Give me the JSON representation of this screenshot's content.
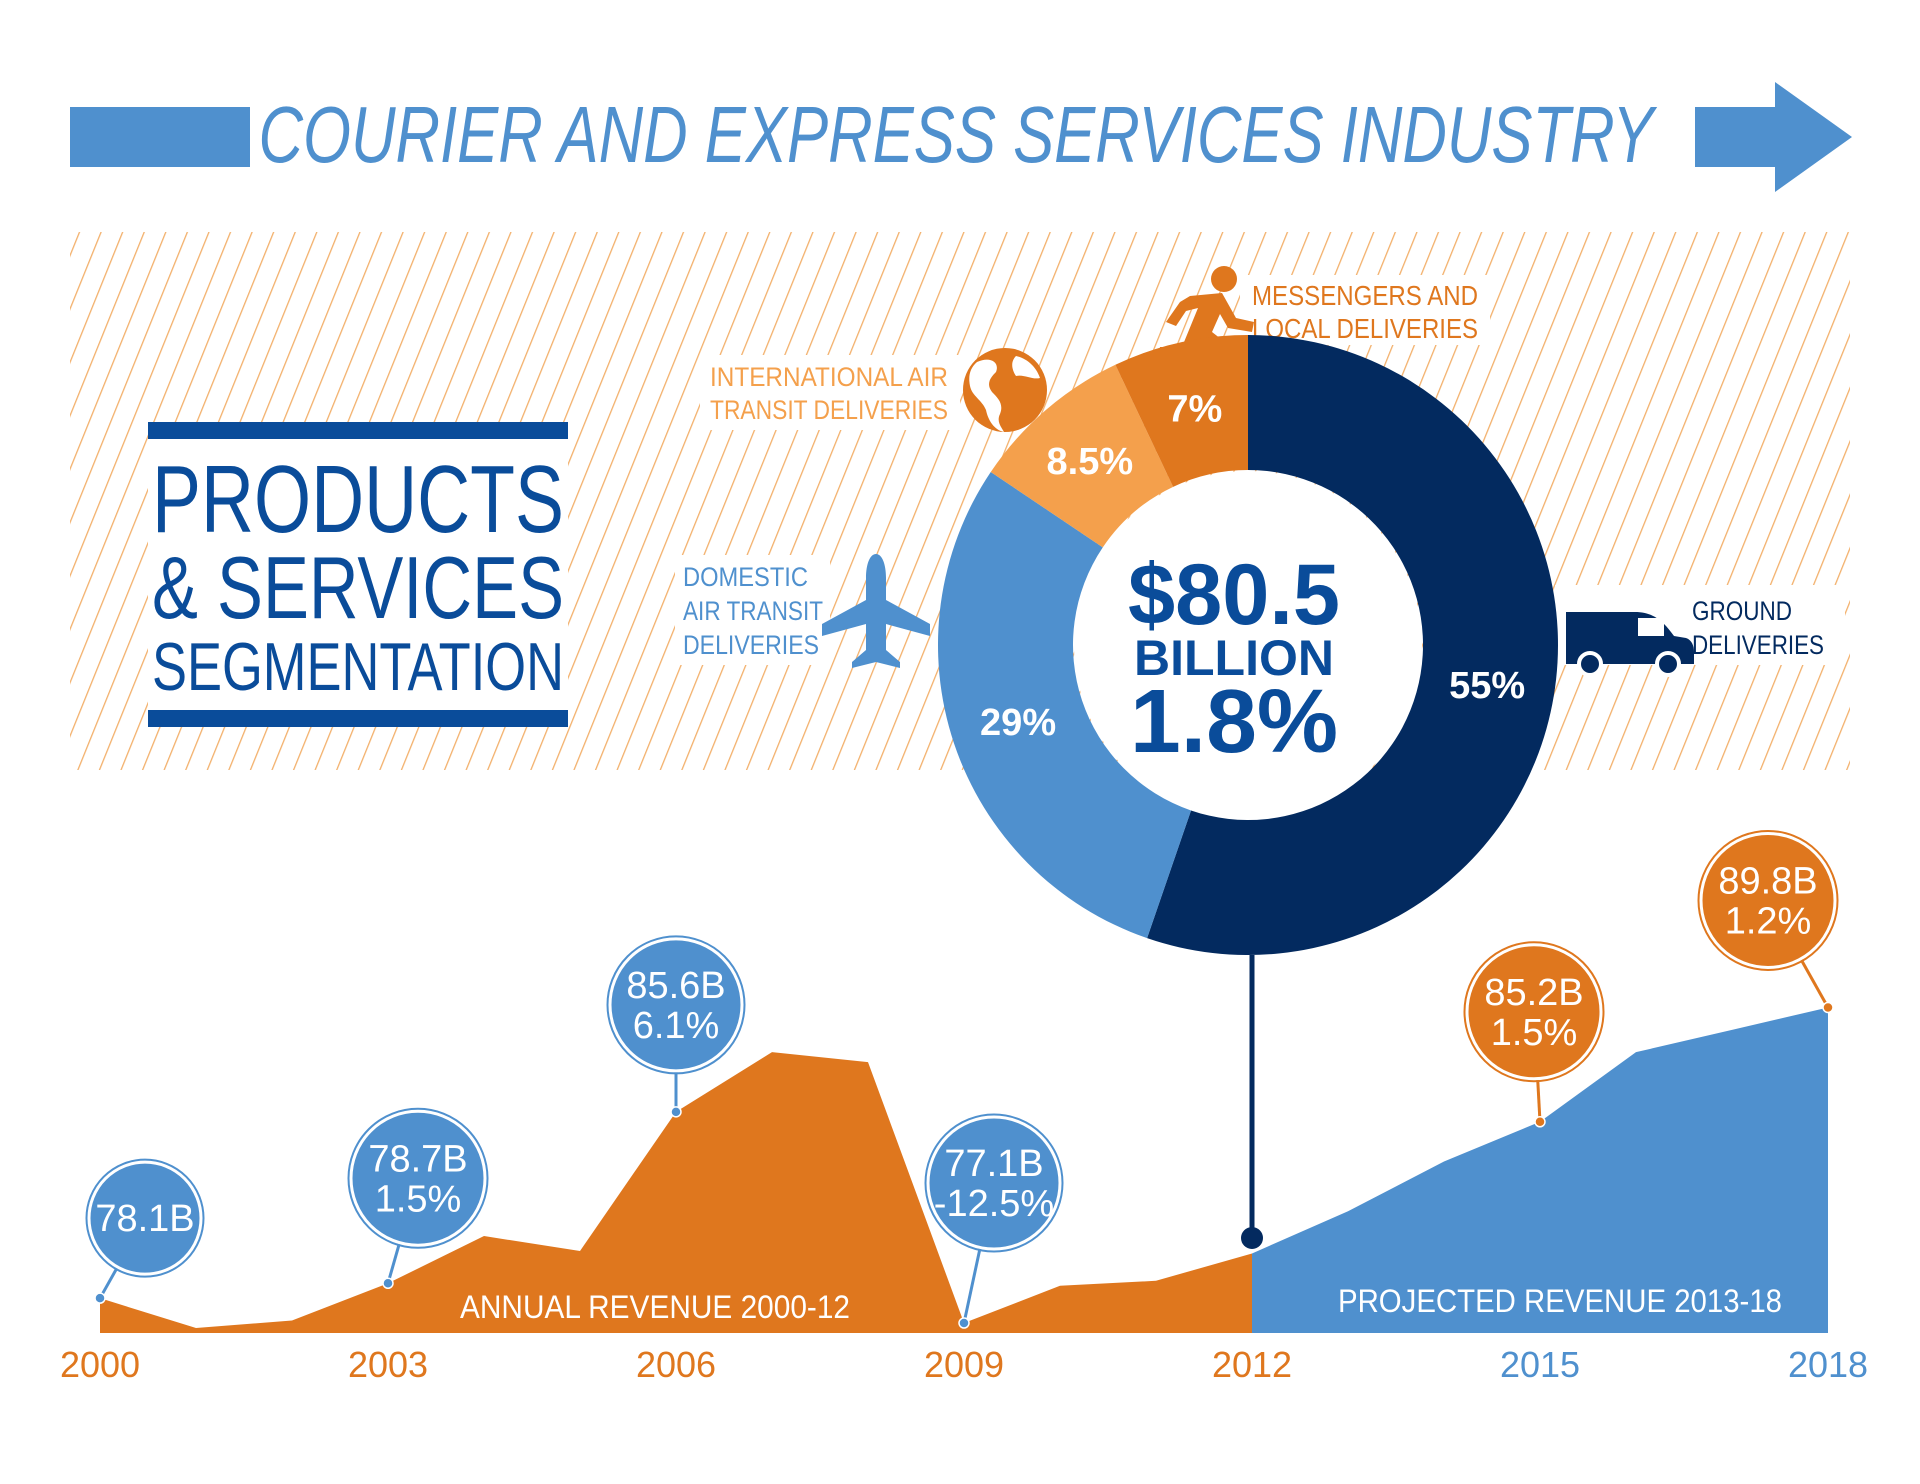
{
  "header": {
    "title": "COURIER AND EXPRESS SERVICES INDUSTRY"
  },
  "segmentation_box": {
    "line1": "PRODUCTS",
    "line2": "& SERVICES",
    "line3": "SEGMENTATION"
  },
  "colors": {
    "light_blue": "#4f90ce",
    "navy": "#032a5f",
    "title_navy": "#0a4c9a",
    "orange": "#df771e",
    "light_orange": "#f4a04c",
    "hatch": "#f3b06b"
  },
  "donut_center": {
    "amount": "$80.5",
    "unit": "BILLION",
    "growth": "1.8%"
  },
  "segment_labels": {
    "messengers": [
      "MESSENGERS AND",
      "LOCAL DELIVERIES"
    ],
    "international": [
      "INTERNATIONAL AIR",
      "TRANSIT DELIVERIES"
    ],
    "domestic": [
      "DOMESTIC",
      "AIR TRANSIT",
      "DELIVERIES"
    ],
    "ground": [
      "GROUND",
      "DELIVERIES"
    ]
  },
  "icons": {
    "messengers": "runner-icon",
    "international": "globe-icon",
    "domestic": "airplane-icon",
    "ground": "van-icon"
  },
  "chart_data": [
    {
      "type": "pie",
      "donut": true,
      "series": [
        {
          "name": "GROUND DELIVERIES",
          "value": 55,
          "label": "55%",
          "color": "#032a5f"
        },
        {
          "name": "DOMESTIC AIR TRANSIT DELIVERIES",
          "value": 29,
          "label": "29%",
          "color": "#4f90ce"
        },
        {
          "name": "INTERNATIONAL AIR TRANSIT DELIVERIES",
          "value": 8.5,
          "label": "8.5%",
          "color": "#f4a04c"
        },
        {
          "name": "MESSENGERS AND LOCAL DELIVERIES",
          "value": 7,
          "label": "7%",
          "color": "#df771e"
        }
      ]
    },
    {
      "type": "area",
      "series": [
        {
          "name": "ANNUAL REVENUE 2000-12",
          "color": "#df771e",
          "x": [
            2000,
            2001,
            2002,
            2003,
            2004,
            2005,
            2006,
            2007,
            2008,
            2009,
            2010,
            2011,
            2012
          ],
          "values": [
            78.1,
            76.9,
            77.2,
            78.7,
            80.6,
            80.0,
            85.6,
            88.0,
            87.6,
            77.1,
            78.6,
            78.8,
            79.9
          ]
        },
        {
          "name": "PROJECTED REVENUE 2013-18",
          "color": "#4f90ce",
          "x": [
            2012,
            2013,
            2014,
            2015,
            2016,
            2017,
            2018
          ],
          "values": [
            79.9,
            81.6,
            83.6,
            85.2,
            88.0,
            88.9,
            89.8
          ]
        }
      ],
      "x_ticks": [
        {
          "label": "2000",
          "year": 2000,
          "color": "#df771e"
        },
        {
          "label": "2003",
          "year": 2003,
          "color": "#df771e"
        },
        {
          "label": "2006",
          "year": 2006,
          "color": "#df771e"
        },
        {
          "label": "2009",
          "year": 2009,
          "color": "#df771e"
        },
        {
          "label": "2012",
          "year": 2012,
          "color": "#df771e"
        },
        {
          "label": "2015",
          "year": 2015,
          "color": "#4f90ce"
        },
        {
          "label": "2018",
          "year": 2018,
          "color": "#4f90ce"
        }
      ],
      "callouts": [
        {
          "year": 2000,
          "value": 78.1,
          "lines": [
            "78.1B"
          ],
          "color": "#4f90ce"
        },
        {
          "year": 2003,
          "value": 78.7,
          "lines": [
            "78.7B",
            "1.5%"
          ],
          "color": "#4f90ce"
        },
        {
          "year": 2006,
          "value": 85.6,
          "lines": [
            "85.6B",
            "6.1%"
          ],
          "color": "#4f90ce"
        },
        {
          "year": 2009,
          "value": 77.1,
          "lines": [
            "77.1B",
            "-12.5%"
          ],
          "color": "#4f90ce"
        },
        {
          "year": 2015,
          "value": 85.2,
          "lines": [
            "85.2B",
            "1.5%"
          ],
          "color": "#df771e"
        },
        {
          "year": 2018,
          "value": 89.8,
          "lines": [
            "89.8B",
            "1.2%"
          ],
          "color": "#df771e"
        }
      ],
      "ylim": [
        76.9,
        90.1
      ]
    }
  ]
}
